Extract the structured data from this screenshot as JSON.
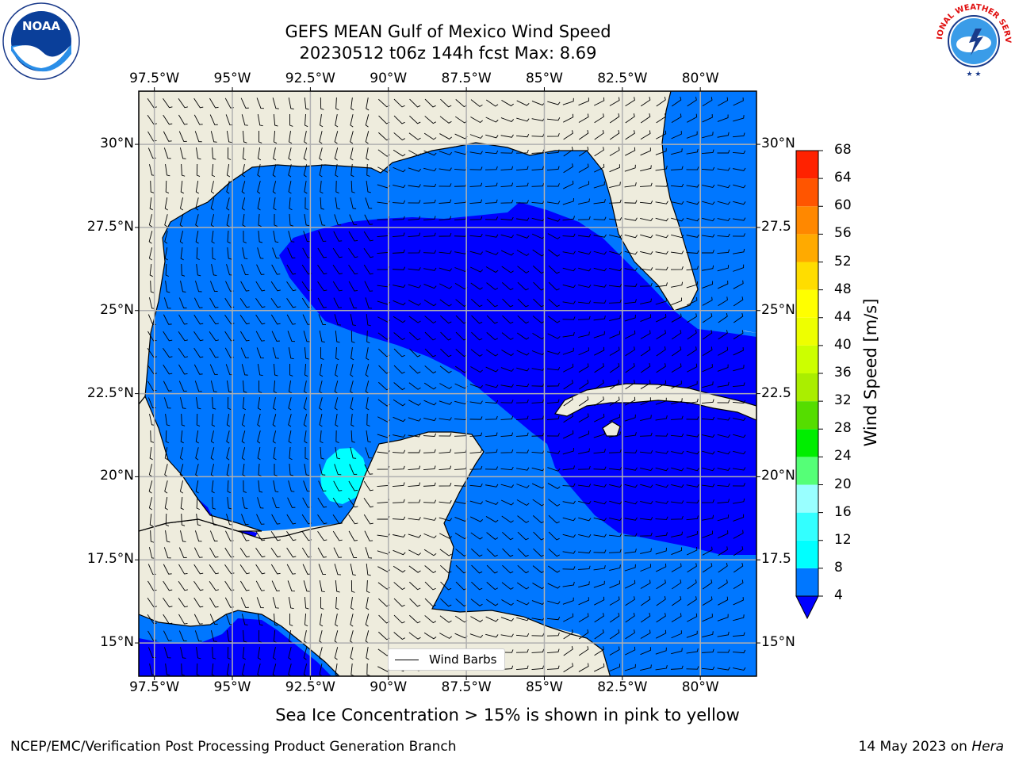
{
  "title": {
    "line1": "GEFS MEAN Gulf of Mexico Wind Speed",
    "line2": "20230512 t06z 144h fcst   Max: 8.69"
  },
  "map": {
    "lon_ticks": [
      "97.5°W",
      "95°W",
      "92.5°W",
      "90°W",
      "87.5°W",
      "85°W",
      "82.5°W",
      "80°W"
    ],
    "lat_ticks_left": [
      "30°N",
      "27.5°N",
      "25°N",
      "22.5°N",
      "20°N",
      "17.5°N",
      "15°N"
    ],
    "lat_ticks_right": [
      "30°N",
      "27.5",
      "25°N",
      "22.5",
      "20°N",
      "17.5",
      "15°N"
    ],
    "lon_range": [
      -98,
      -78.2
    ],
    "lat_range": [
      14,
      31.6
    ],
    "land_color": "#eeecdd",
    "grid": true,
    "legend_label": "Wind Barbs"
  },
  "colorbar": {
    "title": "Wind Speed [m/s]",
    "ticks": [
      "68",
      "64",
      "60",
      "56",
      "52",
      "48",
      "44",
      "40",
      "36",
      "32",
      "28",
      "24",
      "20",
      "16",
      "12",
      "8",
      "4"
    ],
    "bands_low_to_high": [
      "#0077ff",
      "#00ffff",
      "#33ffff",
      "#99ffff",
      "#55ff77",
      "#00ee00",
      "#55dd00",
      "#aaee00",
      "#ccff00",
      "#eeff00",
      "#ffff00",
      "#ffdd00",
      "#ffaa00",
      "#ff8800",
      "#ff5500",
      "#ff2200"
    ],
    "under_color": "#0000ff"
  },
  "note": "Sea Ice Concentration > 15% is shown in pink to yellow",
  "footer": {
    "left": "NCEP/EMC/Verification Post Processing Product Generation Branch",
    "date": "14 May 2023 on",
    "machine": "Hera"
  },
  "logos": {
    "left": "noaa-logo",
    "right": "nws-logo"
  },
  "logo_text": {
    "noaa": "NOAA",
    "nws": "NATIONAL WEATHER SERVICE"
  }
}
